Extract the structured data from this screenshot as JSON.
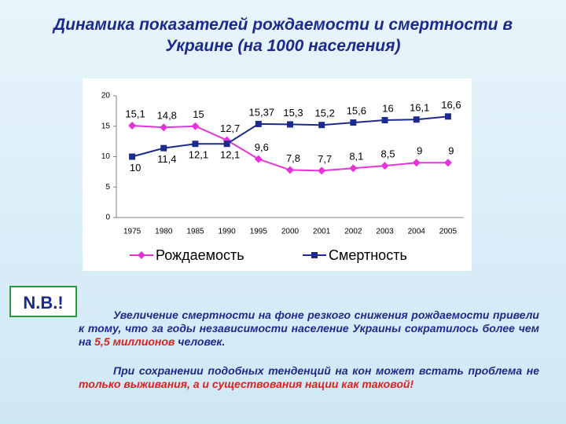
{
  "chart_data": {
    "type": "line",
    "title": "Динамика показателей рождаемости и смертности в Украине (на 1000 населения)",
    "categories": [
      "1975",
      "1980",
      "1985",
      "1990",
      "1995",
      "2000",
      "2001",
      "2002",
      "2003",
      "2004",
      "2005"
    ],
    "series": [
      {
        "name": "Рождаемость",
        "color": "#e633d9",
        "marker": "diamond",
        "values": [
          15.1,
          14.8,
          15,
          12.7,
          9.6,
          7.8,
          7.7,
          8.1,
          8.5,
          9,
          9
        ],
        "value_labels": [
          "15,1",
          "14,8",
          "15",
          "12,7",
          "9,6",
          "7,8",
          "7,7",
          "8,1",
          "8,5",
          "9",
          "9"
        ]
      },
      {
        "name": "Смертность",
        "color": "#1c2a8c",
        "marker": "square",
        "values": [
          10,
          11.4,
          12.1,
          12.1,
          15.37,
          15.3,
          15.2,
          15.6,
          16,
          16.1,
          16.6
        ],
        "value_labels": [
          "10",
          "11,4",
          "12,1",
          "12,1",
          "15,37",
          "15,3",
          "15,2",
          "15,6",
          "16",
          "16,1",
          "16,6"
        ]
      }
    ],
    "ylim": [
      0,
      20
    ],
    "yticks": [
      0,
      5,
      10,
      15,
      20
    ],
    "grid": false,
    "legend": "bottom"
  },
  "note": {
    "label": "N.B.!",
    "paragraphs": [
      [
        {
          "text": "Увеличение смертности на фоне резкого снижения рождаемости привели к тому, что за годы независимости население Украины сократилось более чем на ",
          "highlight": false
        },
        {
          "text": "5,5 миллионов",
          "highlight": true
        },
        {
          "text": " человек.",
          "highlight": false
        }
      ],
      [
        {
          "text": "При сохранении подобных тенденций на кон может встать проблема не ",
          "highlight": false
        },
        {
          "text": "только выживания, а и существования нации как таковой!",
          "highlight": true
        }
      ]
    ]
  }
}
